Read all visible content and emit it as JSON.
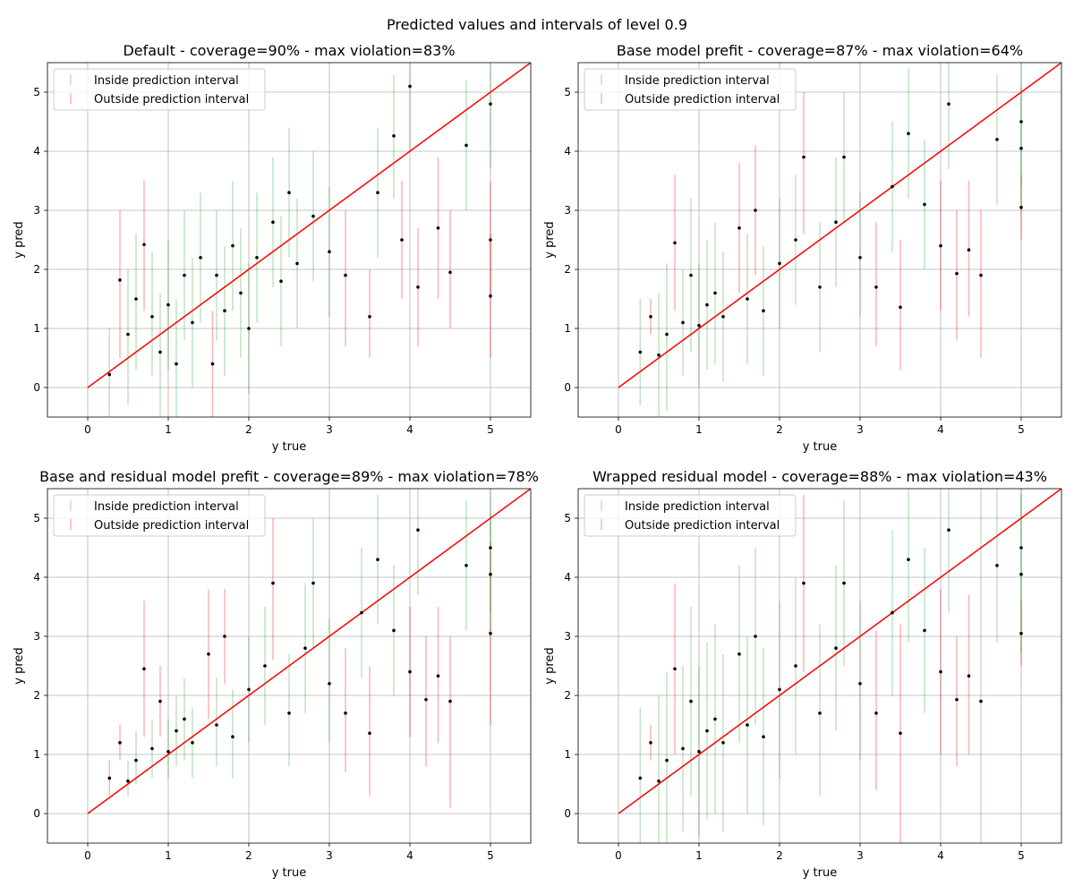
{
  "suptitle": "Predicted values and intervals of level 0.9",
  "colors": {
    "inside": "#2ca02c",
    "outside": "#ff0000",
    "identity_line": "#ff0000",
    "points": "#000000"
  },
  "chart_data": [
    {
      "type": "scatter",
      "title": "Default - coverage=90% - max violation=83%",
      "xlabel": "y true",
      "ylabel": "y pred",
      "xlim": [
        -0.5,
        5.5
      ],
      "ylim": [
        -0.5,
        5.5
      ],
      "xticks": [
        "0",
        "1",
        "2",
        "3",
        "4",
        "5"
      ],
      "yticks": [
        "0",
        "1",
        "2",
        "3",
        "4",
        "5"
      ],
      "grid": true,
      "legend": "top-left",
      "legend_entries": [
        "Inside prediction interval",
        "Outside prediction interval"
      ],
      "point_format": [
        "y_true",
        "y_pred",
        "lower",
        "upper"
      ],
      "points": [
        [
          0.27,
          0.22,
          -0.5,
          1.0
        ],
        [
          0.4,
          1.82,
          0.5,
          3.0
        ],
        [
          0.5,
          0.9,
          -0.3,
          2.0
        ],
        [
          0.6,
          1.5,
          0.3,
          2.6
        ],
        [
          0.7,
          2.42,
          1.3,
          3.5
        ],
        [
          0.8,
          1.2,
          0.2,
          2.3
        ],
        [
          0.9,
          0.6,
          -0.5,
          1.6
        ],
        [
          1.0,
          1.4,
          0.3,
          2.5
        ],
        [
          1.1,
          0.4,
          -0.5,
          1.5
        ],
        [
          1.2,
          1.9,
          0.8,
          3.0
        ],
        [
          1.3,
          1.1,
          0.0,
          2.2
        ],
        [
          1.4,
          2.2,
          1.1,
          3.3
        ],
        [
          1.55,
          0.4,
          -0.5,
          1.3
        ],
        [
          1.6,
          1.9,
          0.8,
          3.0
        ],
        [
          1.7,
          1.3,
          0.2,
          2.4
        ],
        [
          1.8,
          2.4,
          1.3,
          3.5
        ],
        [
          1.9,
          1.6,
          0.5,
          2.7
        ],
        [
          2.0,
          1.0,
          -0.1,
          2.1
        ],
        [
          2.1,
          2.2,
          1.1,
          3.3
        ],
        [
          2.3,
          2.8,
          1.7,
          3.9
        ],
        [
          2.4,
          1.8,
          0.7,
          2.9
        ],
        [
          2.5,
          3.3,
          2.2,
          4.4
        ],
        [
          2.6,
          2.1,
          1.0,
          3.2
        ],
        [
          2.8,
          2.9,
          1.8,
          4.0
        ],
        [
          3.0,
          2.3,
          1.2,
          3.4
        ],
        [
          3.2,
          1.9,
          0.7,
          3.0
        ],
        [
          3.5,
          1.2,
          0.5,
          2.0
        ],
        [
          3.6,
          3.3,
          2.2,
          4.4
        ],
        [
          3.8,
          4.26,
          3.2,
          5.3
        ],
        [
          3.9,
          2.5,
          1.5,
          3.5
        ],
        [
          4.0,
          5.1,
          4.0,
          6.0
        ],
        [
          4.1,
          1.7,
          0.7,
          2.7
        ],
        [
          4.35,
          2.7,
          1.5,
          3.9
        ],
        [
          4.5,
          1.95,
          1.0,
          3.0
        ],
        [
          4.7,
          4.1,
          3.0,
          5.2
        ],
        [
          5.0,
          2.5,
          1.5,
          3.5
        ],
        [
          5.0,
          4.8,
          3.7,
          5.9
        ],
        [
          5.0,
          1.55,
          0.5,
          2.6
        ]
      ]
    },
    {
      "type": "scatter",
      "title": "Base model prefit - coverage=87% - max violation=64%",
      "xlabel": "y true",
      "ylabel": "y pred",
      "xlim": [
        -0.5,
        5.5
      ],
      "ylim": [
        -0.5,
        5.5
      ],
      "xticks": [
        "0",
        "1",
        "2",
        "3",
        "4",
        "5"
      ],
      "yticks": [
        "0",
        "1",
        "2",
        "3",
        "4",
        "5"
      ],
      "grid": true,
      "legend": "top-left",
      "legend_entries": [
        "Inside prediction interval",
        "Outside prediction interval"
      ],
      "point_format": [
        "y_true",
        "y_pred",
        "lower",
        "upper"
      ],
      "points": [
        [
          0.27,
          0.6,
          -0.3,
          1.5
        ],
        [
          0.4,
          1.2,
          0.9,
          1.5
        ],
        [
          0.5,
          0.55,
          -0.5,
          1.6
        ],
        [
          0.6,
          0.9,
          -0.4,
          2.1
        ],
        [
          0.7,
          2.45,
          1.3,
          3.6
        ],
        [
          0.8,
          1.1,
          0.2,
          2.0
        ],
        [
          0.9,
          1.9,
          0.6,
          3.2
        ],
        [
          1.0,
          1.05,
          0.0,
          2.1
        ],
        [
          1.1,
          1.4,
          0.3,
          2.5
        ],
        [
          1.2,
          1.6,
          0.4,
          2.8
        ],
        [
          1.3,
          1.2,
          0.1,
          2.3
        ],
        [
          1.5,
          2.7,
          1.6,
          3.8
        ],
        [
          1.6,
          1.5,
          0.4,
          2.6
        ],
        [
          1.7,
          3.0,
          1.9,
          4.1
        ],
        [
          1.8,
          1.3,
          0.2,
          2.4
        ],
        [
          2.0,
          2.1,
          1.0,
          3.2
        ],
        [
          2.2,
          2.5,
          1.4,
          3.6
        ],
        [
          2.3,
          3.9,
          2.6,
          5.0
        ],
        [
          2.5,
          1.7,
          0.6,
          2.8
        ],
        [
          2.7,
          2.8,
          1.7,
          3.9
        ],
        [
          2.8,
          3.9,
          2.8,
          5.0
        ],
        [
          3.0,
          2.2,
          1.2,
          3.3
        ],
        [
          3.2,
          1.7,
          0.7,
          2.8
        ],
        [
          3.4,
          3.4,
          2.3,
          4.5
        ],
        [
          3.5,
          1.36,
          0.3,
          2.5
        ],
        [
          3.6,
          4.3,
          3.2,
          5.4
        ],
        [
          3.8,
          3.1,
          2.0,
          4.2
        ],
        [
          4.0,
          2.4,
          1.3,
          3.5
        ],
        [
          4.1,
          4.8,
          3.7,
          5.9
        ],
        [
          4.2,
          1.93,
          0.8,
          3.0
        ],
        [
          4.35,
          2.33,
          1.2,
          3.5
        ],
        [
          4.5,
          1.9,
          0.5,
          3.0
        ],
        [
          4.7,
          4.2,
          3.1,
          5.3
        ],
        [
          5.0,
          3.05,
          2.5,
          3.6
        ],
        [
          5.0,
          4.5,
          3.4,
          5.6
        ],
        [
          5.0,
          4.05,
          3.0,
          5.1
        ]
      ]
    },
    {
      "type": "scatter",
      "title": "Base and residual model prefit - coverage=89% - max violation=78%",
      "xlabel": "y true",
      "ylabel": "y pred",
      "xlim": [
        -0.5,
        5.5
      ],
      "ylim": [
        -0.5,
        5.5
      ],
      "xticks": [
        "0",
        "1",
        "2",
        "3",
        "4",
        "5"
      ],
      "yticks": [
        "0",
        "1",
        "2",
        "3",
        "4",
        "5"
      ],
      "grid": true,
      "legend": "top-left",
      "legend_entries": [
        "Inside prediction interval",
        "Outside prediction interval"
      ],
      "point_format": [
        "y_true",
        "y_pred",
        "lower",
        "upper"
      ],
      "points": [
        [
          0.27,
          0.6,
          0.3,
          0.9
        ],
        [
          0.4,
          1.2,
          0.9,
          1.5
        ],
        [
          0.5,
          0.55,
          0.3,
          0.9
        ],
        [
          0.6,
          0.9,
          0.5,
          1.4
        ],
        [
          0.7,
          2.45,
          1.3,
          3.6
        ],
        [
          0.8,
          1.1,
          0.6,
          1.6
        ],
        [
          0.9,
          1.9,
          1.3,
          2.5
        ],
        [
          1.0,
          1.05,
          0.6,
          1.6
        ],
        [
          1.1,
          1.4,
          0.8,
          2.0
        ],
        [
          1.2,
          1.6,
          0.9,
          2.3
        ],
        [
          1.3,
          1.2,
          0.6,
          1.8
        ],
        [
          1.5,
          2.7,
          1.6,
          3.8
        ],
        [
          1.6,
          1.5,
          0.8,
          2.3
        ],
        [
          1.7,
          3.0,
          2.2,
          3.8
        ],
        [
          1.8,
          1.3,
          0.6,
          2.1
        ],
        [
          2.0,
          2.1,
          1.2,
          3.0
        ],
        [
          2.2,
          2.5,
          1.5,
          3.5
        ],
        [
          2.3,
          3.9,
          2.6,
          5.0
        ],
        [
          2.5,
          1.7,
          0.8,
          2.7
        ],
        [
          2.7,
          2.8,
          1.7,
          3.9
        ],
        [
          2.8,
          3.9,
          2.8,
          5.0
        ],
        [
          3.0,
          2.2,
          1.2,
          3.3
        ],
        [
          3.2,
          1.7,
          0.7,
          2.8
        ],
        [
          3.4,
          3.4,
          2.3,
          4.5
        ],
        [
          3.5,
          1.36,
          0.3,
          2.5
        ],
        [
          3.6,
          4.3,
          3.2,
          5.4
        ],
        [
          3.8,
          3.1,
          2.0,
          4.2
        ],
        [
          4.0,
          2.4,
          1.3,
          3.5
        ],
        [
          4.1,
          4.8,
          3.7,
          5.9
        ],
        [
          4.2,
          1.93,
          0.8,
          3.0
        ],
        [
          4.35,
          2.33,
          1.2,
          3.5
        ],
        [
          4.5,
          1.9,
          0.1,
          3.0
        ],
        [
          4.7,
          4.2,
          3.1,
          5.3
        ],
        [
          5.0,
          3.05,
          1.5,
          4.6
        ],
        [
          5.0,
          4.5,
          3.4,
          5.6
        ],
        [
          5.0,
          4.05,
          3.0,
          5.1
        ]
      ]
    },
    {
      "type": "scatter",
      "title": "Wrapped residual model - coverage=88% - max violation=43%",
      "xlabel": "y true",
      "ylabel": "y pred",
      "xlim": [
        -0.5,
        5.5
      ],
      "ylim": [
        -0.5,
        5.5
      ],
      "xticks": [
        "0",
        "1",
        "2",
        "3",
        "4",
        "5"
      ],
      "yticks": [
        "0",
        "1",
        "2",
        "3",
        "4",
        "5"
      ],
      "grid": true,
      "legend": "top-left",
      "legend_entries": [
        "Inside prediction interval",
        "Outside prediction interval"
      ],
      "point_format": [
        "y_true",
        "y_pred",
        "lower",
        "upper"
      ],
      "points": [
        [
          0.27,
          0.6,
          -0.5,
          1.8
        ],
        [
          0.4,
          1.2,
          0.9,
          1.5
        ],
        [
          0.5,
          0.55,
          -0.5,
          2.0
        ],
        [
          0.6,
          0.9,
          -0.5,
          2.4
        ],
        [
          0.7,
          2.45,
          1.0,
          3.9
        ],
        [
          0.8,
          1.1,
          -0.3,
          2.5
        ],
        [
          0.9,
          1.9,
          0.3,
          3.5
        ],
        [
          1.0,
          1.05,
          -0.4,
          2.5
        ],
        [
          1.1,
          1.4,
          -0.1,
          2.9
        ],
        [
          1.2,
          1.6,
          0.0,
          3.2
        ],
        [
          1.3,
          1.2,
          -0.3,
          2.7
        ],
        [
          1.5,
          2.7,
          1.2,
          4.2
        ],
        [
          1.6,
          1.5,
          0.0,
          3.0
        ],
        [
          1.7,
          3.0,
          1.5,
          4.5
        ],
        [
          1.8,
          1.3,
          -0.2,
          2.8
        ],
        [
          2.0,
          2.1,
          0.6,
          3.6
        ],
        [
          2.2,
          2.5,
          1.0,
          4.0
        ],
        [
          2.3,
          3.9,
          2.4,
          5.4
        ],
        [
          2.5,
          1.7,
          0.3,
          3.2
        ],
        [
          2.7,
          2.8,
          1.4,
          4.2
        ],
        [
          2.8,
          3.9,
          2.5,
          5.3
        ],
        [
          3.0,
          2.2,
          0.9,
          3.6
        ],
        [
          3.2,
          1.7,
          0.4,
          3.1
        ],
        [
          3.4,
          3.4,
          2.0,
          4.8
        ],
        [
          3.5,
          1.36,
          -0.5,
          3.2
        ],
        [
          3.6,
          4.3,
          2.9,
          5.7
        ],
        [
          3.8,
          3.1,
          1.7,
          4.5
        ],
        [
          4.0,
          2.4,
          1.0,
          3.8
        ],
        [
          4.1,
          4.8,
          3.4,
          6.0
        ],
        [
          4.2,
          1.93,
          0.8,
          3.0
        ],
        [
          4.35,
          2.33,
          1.0,
          3.7
        ],
        [
          4.5,
          1.9,
          -0.5,
          5.5
        ],
        [
          4.7,
          4.2,
          2.9,
          5.5
        ],
        [
          5.0,
          3.05,
          2.5,
          3.6
        ],
        [
          5.0,
          4.5,
          3.1,
          5.9
        ],
        [
          5.0,
          4.05,
          2.7,
          5.4
        ]
      ]
    }
  ]
}
